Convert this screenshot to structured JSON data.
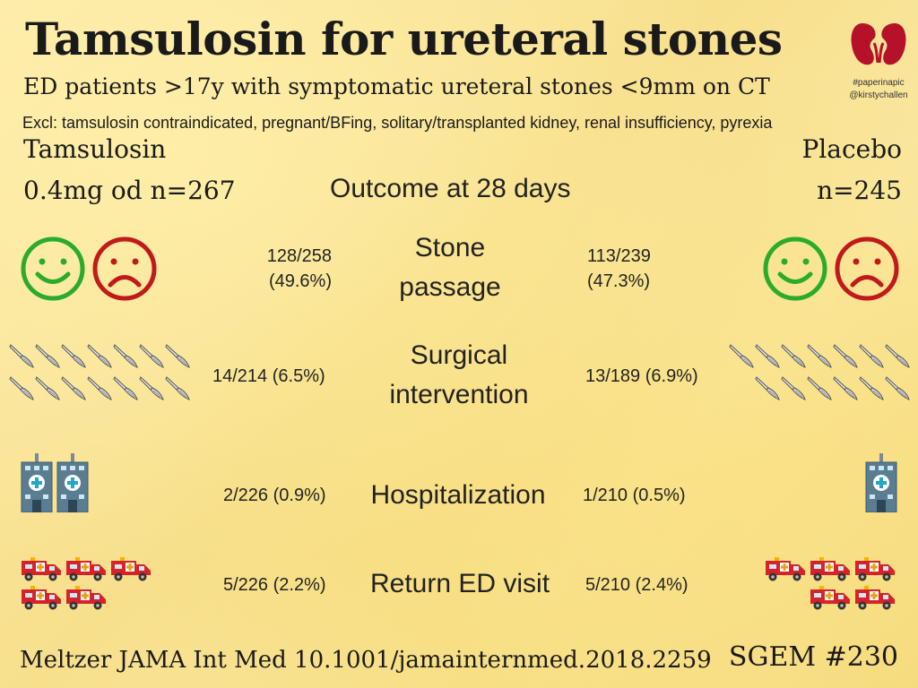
{
  "header": {
    "title": "Tamsulosin for ureteral stones",
    "subtitle": "ED patients >17y with symptomatic ureteral stones <9mm on CT",
    "exclusions": "Excl: tamsulosin contraindicated, pregnant/BFing, solitary/transplanted kidney, renal insufficiency, pyrexia"
  },
  "branding": {
    "hashtag": "#paperinapic",
    "handle": "@kirstychallen",
    "logo_icon": "kidneys-icon"
  },
  "arms": {
    "left_line1": "Tamsulosin",
    "left_line2": "0.4mg od n=267",
    "right_line1": "Placebo",
    "right_line2": "n=245",
    "outcome_label": "Outcome at 28 days"
  },
  "outcomes": {
    "stone": {
      "label_line1": "Stone",
      "label_line2": "passage",
      "left_line1": "128/258",
      "left_line2": "(49.6%)",
      "right_line1": "113/239",
      "right_line2": "(47.3%)",
      "icon": "smiley-and-frown-icons"
    },
    "surgical": {
      "label_line1": "Surgical",
      "label_line2": "intervention",
      "left": "14/214 (6.5%)",
      "right": "13/189 (6.9%)",
      "icon": "scalpel-icon",
      "left_count": 14,
      "right_count": 13
    },
    "hospital": {
      "label": "Hospitalization",
      "left": "2/226 (0.9%)",
      "right": "1/210 (0.5%)",
      "icon": "hospital-icon",
      "left_count": 2,
      "right_count": 1
    },
    "return_ed": {
      "label": "Return ED visit",
      "left": "5/226 (2.2%)",
      "right": "5/210 (2.4%)",
      "icon": "ambulance-icon",
      "left_count": 5,
      "right_count": 5
    }
  },
  "footer": {
    "citation": "Meltzer JAMA Int Med 10.1001/jamainternmed.2018.2259",
    "episode": "SGEM #230"
  },
  "colors": {
    "smile": "#2bab2b",
    "frown": "#c01a1a",
    "kidney": "#b5122a"
  }
}
